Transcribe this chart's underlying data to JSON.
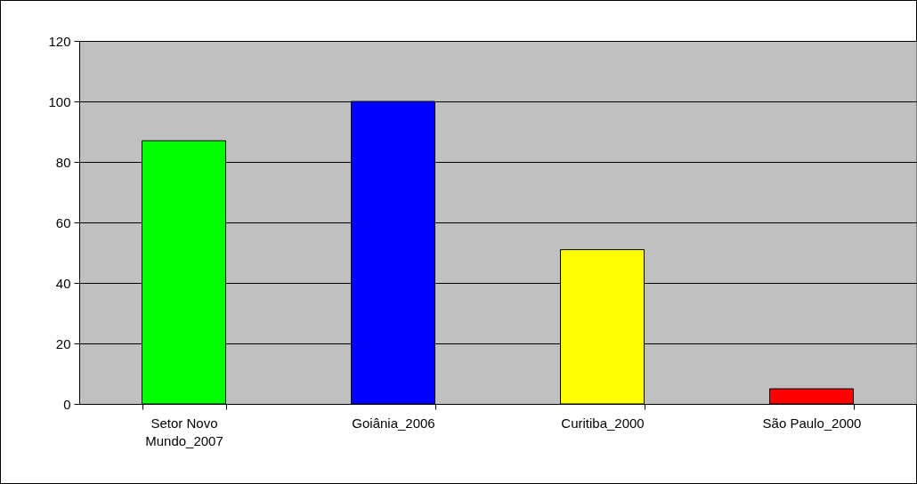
{
  "chart_data": {
    "type": "bar",
    "categories": [
      "Setor Novo Mundo_2007",
      "Goiânia_2006",
      "Curitiba_2000",
      "São Paulo_2000"
    ],
    "values": [
      87,
      100,
      51,
      5
    ],
    "colors": [
      "#00ff00",
      "#0000ff",
      "#ffff00",
      "#ff0000"
    ],
    "ylim": [
      0,
      120
    ],
    "yticks": [
      0,
      20,
      40,
      60,
      80,
      100,
      120
    ],
    "grid": "y"
  }
}
